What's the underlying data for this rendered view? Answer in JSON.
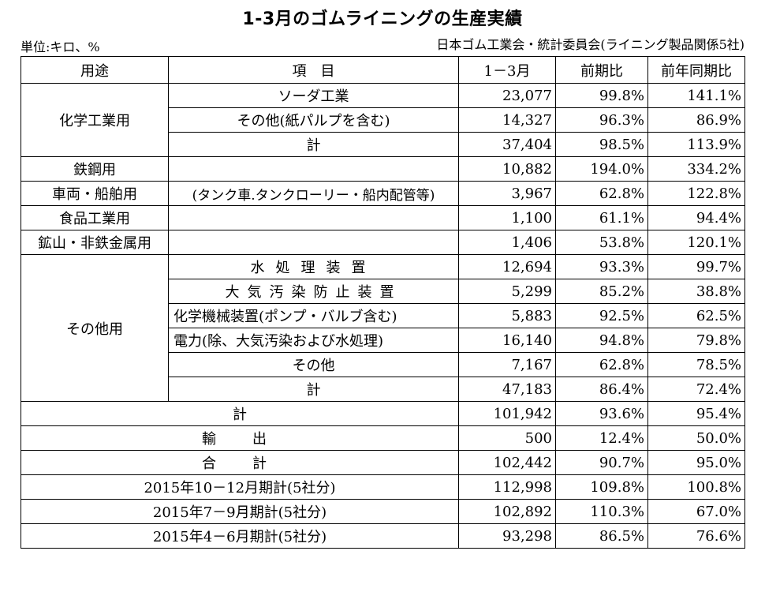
{
  "title": "1-3月のゴムライニングの生産実績",
  "unit": "単位:キロ、%",
  "source": "日本ゴム工業会・統計委員会(ライニング製品関係5社)",
  "headers": {
    "use": "用途",
    "item": "項　目",
    "period": "1－3月",
    "qoq": "前期比",
    "yoy": "前年同期比"
  },
  "chem": {
    "label": "化学工業用",
    "rows": [
      {
        "item": "ソーダ工業",
        "value": "23,077",
        "qoq": "99.8%",
        "yoy": "141.1%"
      },
      {
        "item": "その他(紙パルプを含む)",
        "value": "14,327",
        "qoq": "96.3%",
        "yoy": "86.9%"
      },
      {
        "item": "計",
        "value": "37,404",
        "qoq": "98.5%",
        "yoy": "113.9%"
      }
    ]
  },
  "steel": {
    "label": "鉄鋼用",
    "item": "",
    "value": "10,882",
    "qoq": "194.0%",
    "yoy": "334.2%"
  },
  "vehicle": {
    "label": "車両・船舶用",
    "item": "(タンク車.タンクローリー・船内配管等)",
    "value": "3,967",
    "qoq": "62.8%",
    "yoy": "122.8%"
  },
  "food": {
    "label": "食品工業用",
    "item": "",
    "value": "1,100",
    "qoq": "61.1%",
    "yoy": "94.4%"
  },
  "mining": {
    "label": "鉱山・非鉄金属用",
    "item": "",
    "value": "1,406",
    "qoq": "53.8%",
    "yoy": "120.1%"
  },
  "other": {
    "label": "その他用",
    "rows": [
      {
        "item": "水処理装置",
        "value": "12,694",
        "qoq": "93.3%",
        "yoy": "99.7%"
      },
      {
        "item": "大気汚染防止装置",
        "value": "5,299",
        "qoq": "85.2%",
        "yoy": "38.8%"
      },
      {
        "item": "化学機械装置(ポンプ・バルブ含む)",
        "value": "5,883",
        "qoq": "92.5%",
        "yoy": "62.5%"
      },
      {
        "item": "電力(除、大気汚染および水処理)",
        "value": "16,140",
        "qoq": "94.8%",
        "yoy": "79.8%"
      },
      {
        "item": "その他",
        "value": "7,167",
        "qoq": "62.8%",
        "yoy": "78.5%"
      },
      {
        "item": "計",
        "value": "47,183",
        "qoq": "86.4%",
        "yoy": "72.4%"
      }
    ]
  },
  "subtotal": {
    "label": "計",
    "value": "101,942",
    "qoq": "93.6%",
    "yoy": "95.4%"
  },
  "export": {
    "label": "輸　出",
    "value": "500",
    "qoq": "12.4%",
    "yoy": "50.0%"
  },
  "total": {
    "label": "合　計",
    "value": "102,442",
    "qoq": "90.7%",
    "yoy": "95.0%"
  },
  "history": [
    {
      "label": "2015年10－12月期計(5社分)",
      "value": "112,998",
      "qoq": "109.8%",
      "yoy": "100.8%"
    },
    {
      "label": "2015年7－9月期計(5社分)",
      "value": "102,892",
      "qoq": "110.3%",
      "yoy": "67.0%"
    },
    {
      "label": "2015年4－6月期計(5社分)",
      "value": "93,298",
      "qoq": "86.5%",
      "yoy": "76.6%"
    }
  ]
}
